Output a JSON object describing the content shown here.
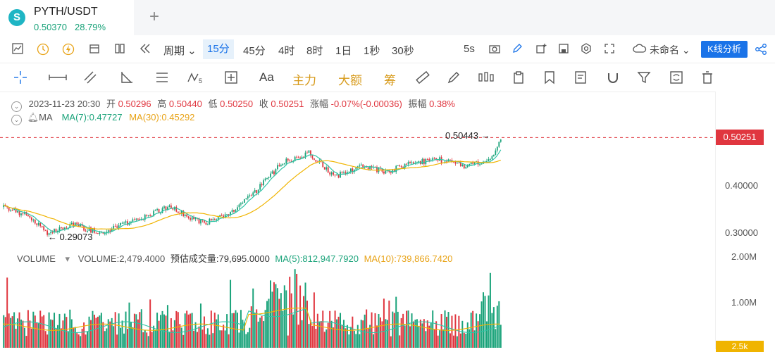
{
  "tab": {
    "logo": "S",
    "symbol": "PYTH/USDT",
    "price": "0.50370",
    "change": "28.79%",
    "add": "+"
  },
  "toolbar": {
    "period_label": "周期",
    "periods": [
      "15分",
      "45分",
      "4时",
      "8时",
      "1日",
      "1秒",
      "30秒"
    ],
    "active_period": "15分",
    "interval": "5s",
    "layout_name": "未命名",
    "analysis_button": "K线分析",
    "icons": [
      "line-chart-icon",
      "clock-icon",
      "lightning-icon",
      "calendar-icon",
      "columns-icon",
      "rewind-icon",
      "camera-icon",
      "pen-icon",
      "add-chart-icon",
      "save-icon",
      "settings-icon",
      "fullscreen-icon",
      "cloud-icon",
      "share-icon"
    ]
  },
  "draw_tools": {
    "icons": [
      "crosshair-icon",
      "horizontal-line-icon",
      "parallel-channel-icon",
      "angle-icon",
      "fib-icon",
      "wave-icon",
      "measure-icon"
    ],
    "text_tools": [
      "Aa",
      "主力",
      "大额",
      "筹"
    ],
    "icons_right": [
      "ruler-icon",
      "brush-icon",
      "candle-icon",
      "clipboard-icon",
      "bookmark-icon",
      "edit-note-icon",
      "magnet-icon",
      "filter-icon",
      "sync-icon",
      "trash-icon"
    ]
  },
  "ohlc": {
    "date": "2023-11-23 20:30",
    "open_label": "开",
    "open": "0.50296",
    "high_label": "高",
    "high": "0.50440",
    "low_label": "低",
    "low": "0.50250",
    "close_label": "收",
    "close": "0.50251",
    "change_label": "涨幅",
    "change": "-0.07%(-0.00036)",
    "amp_label": "振幅",
    "amp": "0.38%"
  },
  "ma_legend": {
    "label": "MA",
    "ma7": "MA(7):0.47727",
    "ma30": "MA(30):0.45292"
  },
  "volume_legend": {
    "label": "VOLUME",
    "volume": "VOLUME:2,479.4000",
    "estimate": "预估成交量:79,695.0000",
    "ma5": "MA(5):812,947.7920",
    "ma10": "MA(10):739,866.7420"
  },
  "price_axis": {
    "current": "0.50251",
    "ticks": [
      "0.40000",
      "0.30000"
    ],
    "vol_ticks": [
      "2.00M",
      "1.00M"
    ],
    "vol_bottom_badge": "2.5k"
  },
  "annotations": {
    "high_label": "0.50443",
    "low_label": "0.29073"
  },
  "colors": {
    "up": "#1aa37a",
    "down": "#e0363f",
    "ma7": "#2ec4a5",
    "ma30": "#f0b400",
    "accent": "#1a73e8"
  },
  "chart_data": {
    "type": "candlestick",
    "current_price": 0.50251,
    "y_range": [
      0.25,
      0.52
    ],
    "marked_high": 0.50443,
    "marked_low": 0.29073,
    "price_anchors": [
      [
        0,
        0.355
      ],
      [
        15,
        0.335
      ],
      [
        25,
        0.3
      ],
      [
        40,
        0.318
      ],
      [
        55,
        0.3
      ],
      [
        70,
        0.32
      ],
      [
        95,
        0.355
      ],
      [
        115,
        0.32
      ],
      [
        130,
        0.345
      ],
      [
        145,
        0.39
      ],
      [
        160,
        0.45
      ],
      [
        175,
        0.47
      ],
      [
        190,
        0.42
      ],
      [
        205,
        0.44
      ],
      [
        220,
        0.43
      ],
      [
        235,
        0.45
      ],
      [
        250,
        0.455
      ],
      [
        265,
        0.44
      ],
      [
        280,
        0.46
      ],
      [
        285,
        0.5
      ]
    ],
    "volume_range": [
      0,
      2.3
    ],
    "volume_unit": "M"
  }
}
